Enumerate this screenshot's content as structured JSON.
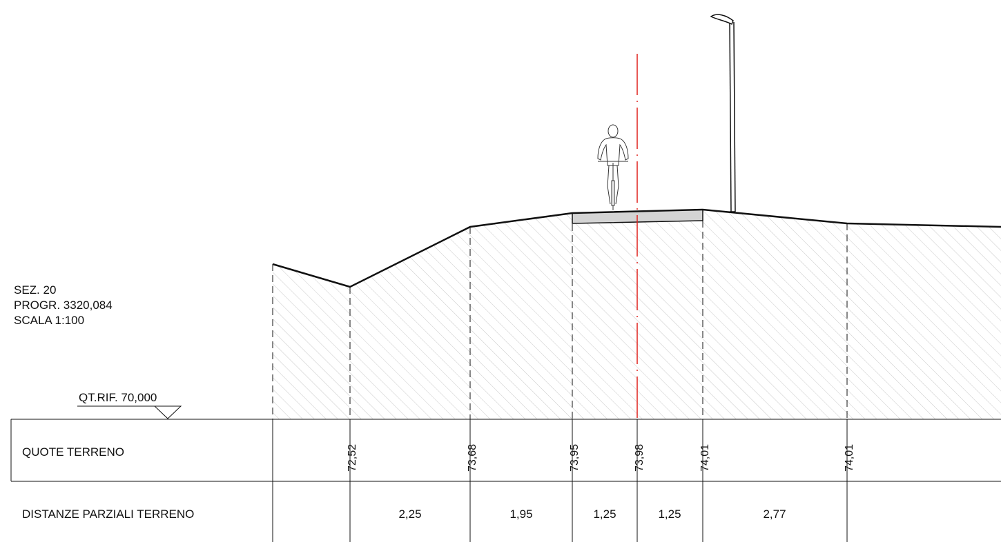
{
  "section_info": {
    "section": "SEZ. 20",
    "progressive": "PROGR. 3320,084",
    "scale": "SCALA 1:100"
  },
  "reference_level": "QT.RIF. 70,000",
  "table": {
    "row1_label": "QUOTE TERRENO",
    "row2_label": "DISTANZE PARZIALI TERRENO"
  },
  "elevations": [
    "72,52",
    "73,68",
    "73,95",
    "73,98",
    "74,01",
    "74,01"
  ],
  "distances": [
    "2,25",
    "1,95",
    "1,25",
    "1,25",
    "2,77"
  ],
  "icons": {
    "cyclist": "cyclist-icon",
    "street_lamp": "street-lamp-icon"
  },
  "colors": {
    "axis_line": "#e0201c",
    "pavement": "#d4d4d4",
    "line": "#111111"
  }
}
